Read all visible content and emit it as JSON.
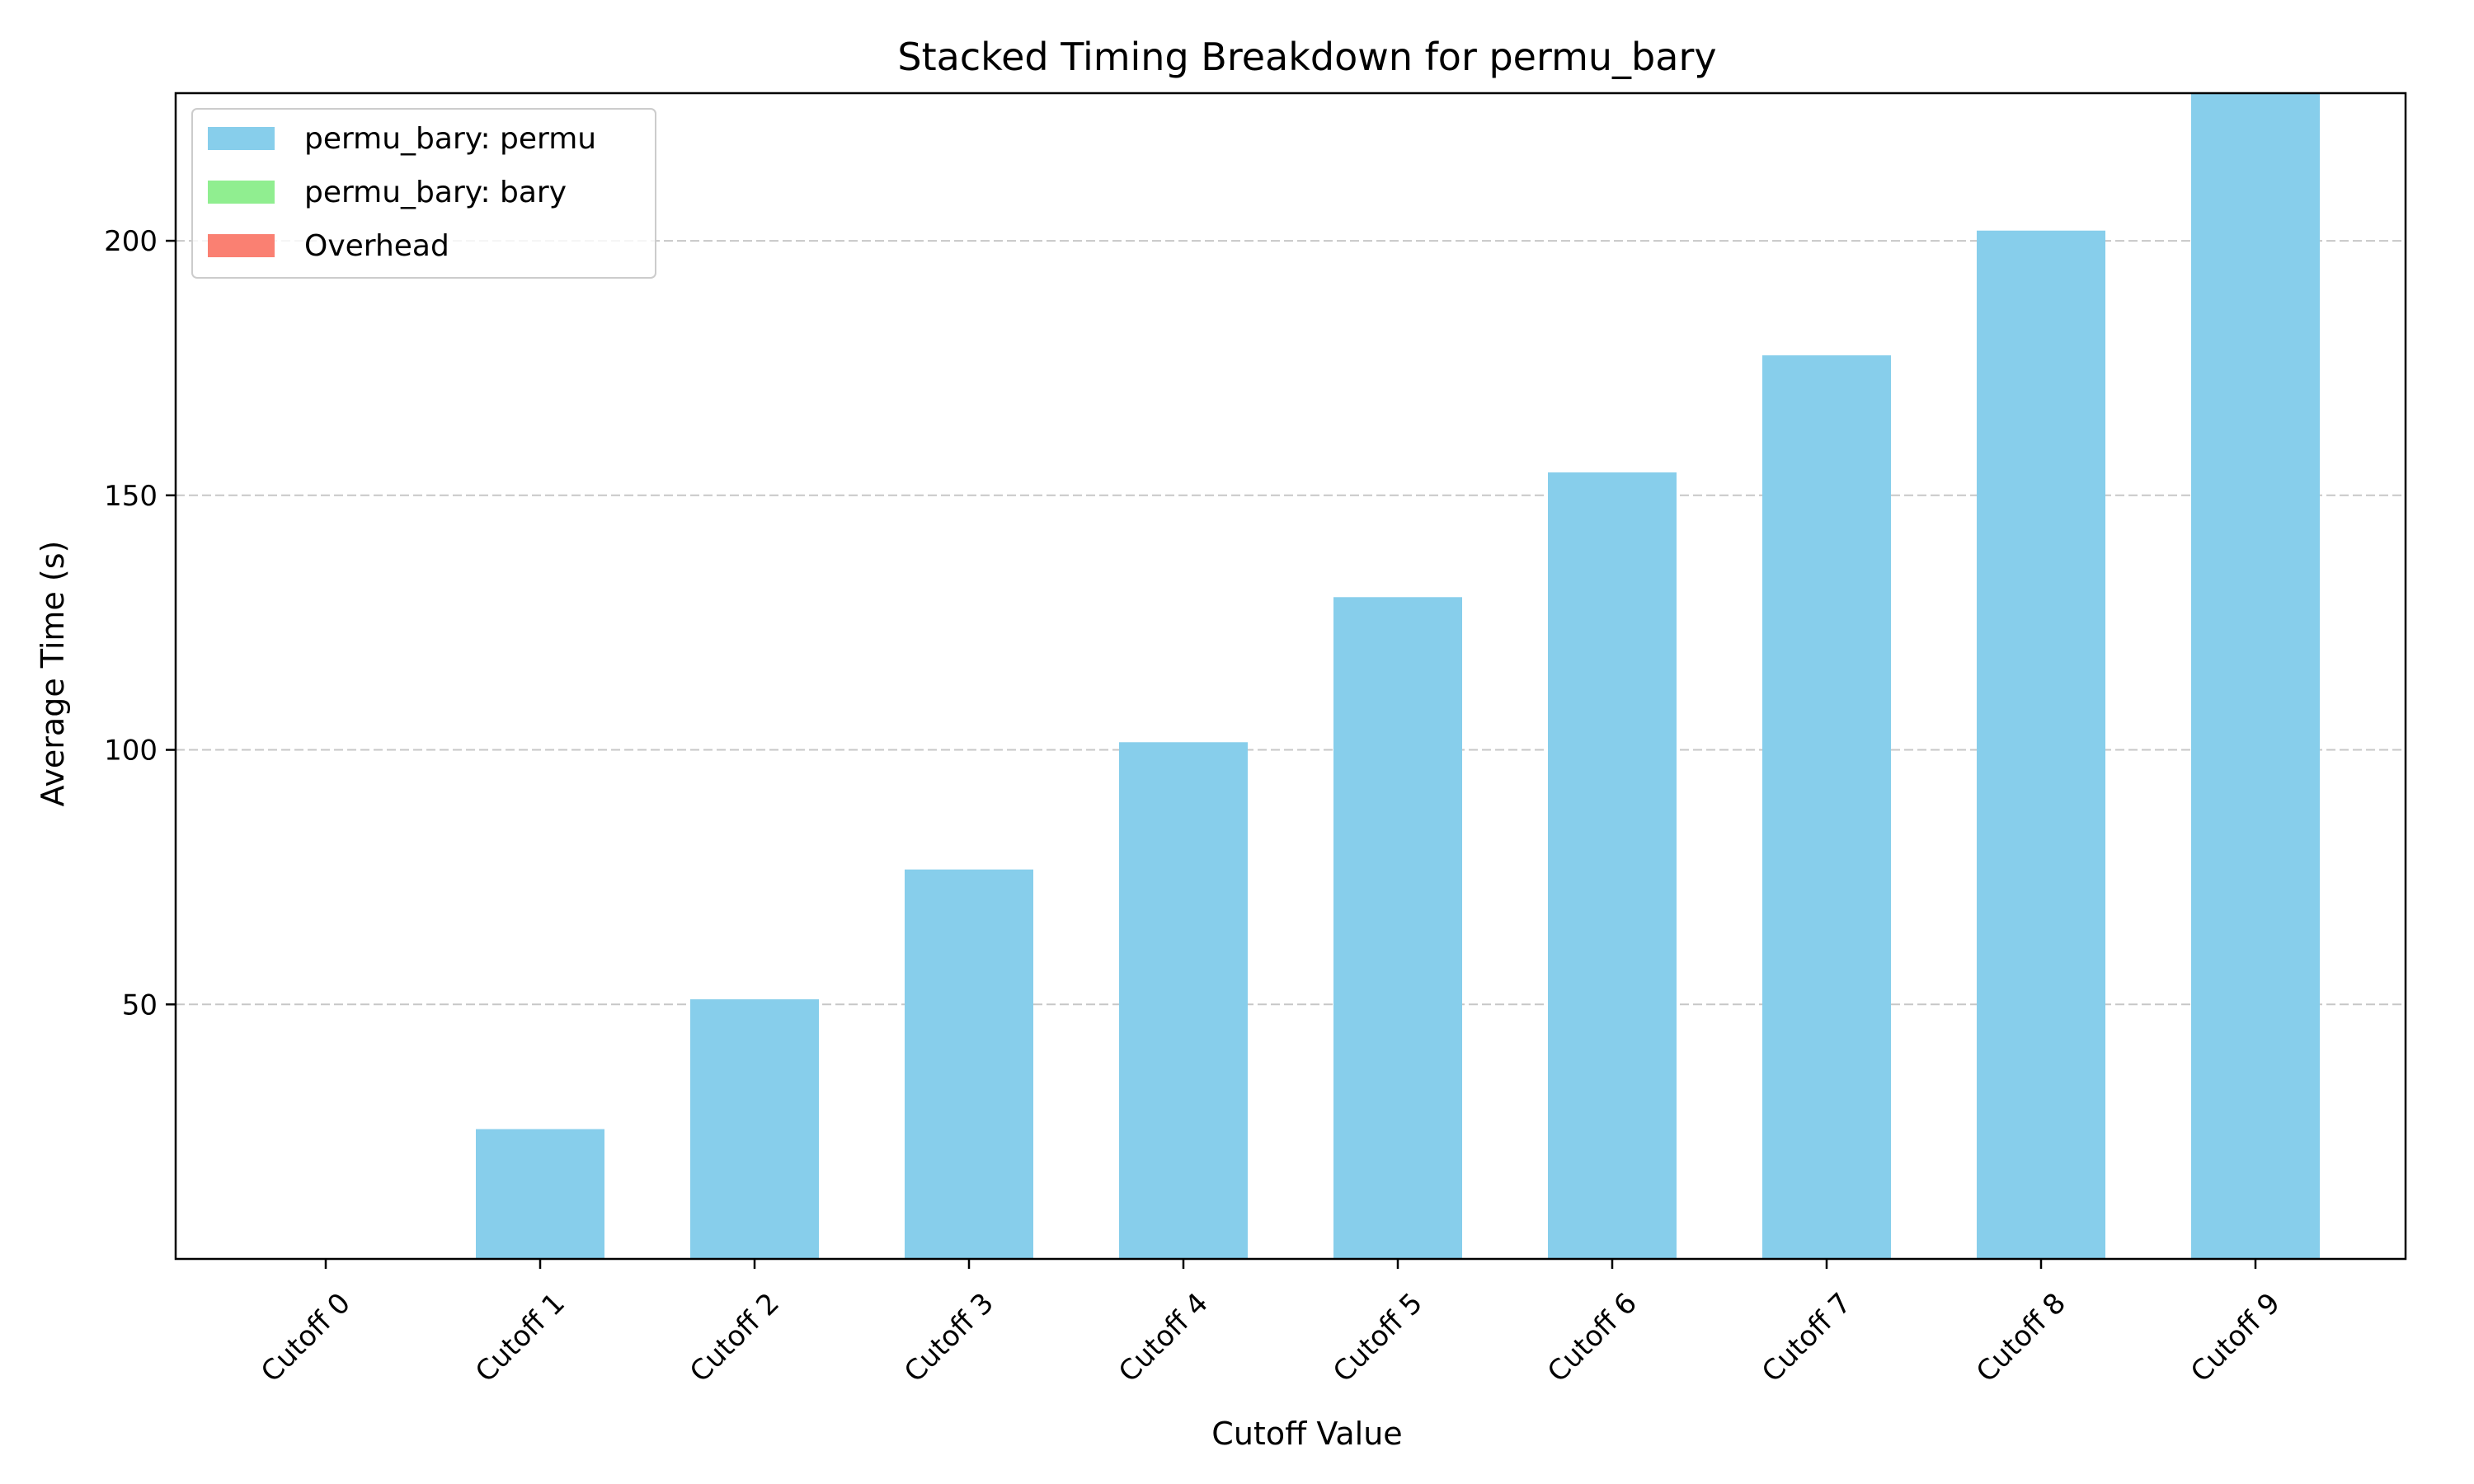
{
  "chart_data": {
    "type": "bar",
    "stacked": true,
    "title": "Stacked Timing Breakdown for permu_bary",
    "xlabel": "Cutoff Value",
    "ylabel": "Average Time (s)",
    "categories": [
      "Cutoff 0",
      "Cutoff 1",
      "Cutoff 2",
      "Cutoff 3",
      "Cutoff 4",
      "Cutoff 5",
      "Cutoff 6",
      "Cutoff 7",
      "Cutoff 8",
      "Cutoff 9"
    ],
    "series": [
      {
        "name": "permu_bary: permu",
        "color": "#87ceeb",
        "values": [
          0,
          25.5,
          51,
          76.5,
          101.5,
          130,
          154.5,
          177.5,
          202,
          229
        ]
      },
      {
        "name": "permu_bary: bary",
        "color": "#90ee90",
        "values": [
          0,
          0,
          0,
          0,
          0,
          0,
          0,
          0,
          0,
          0
        ]
      },
      {
        "name": "Overhead",
        "color": "#fa8072",
        "values": [
          0,
          0,
          0,
          0,
          0,
          0,
          0,
          0,
          0,
          0
        ]
      }
    ],
    "yticks": [
      50,
      100,
      150,
      200
    ],
    "ylim": [
      0,
      229
    ],
    "grid": "y",
    "legend_position": "upper left"
  }
}
